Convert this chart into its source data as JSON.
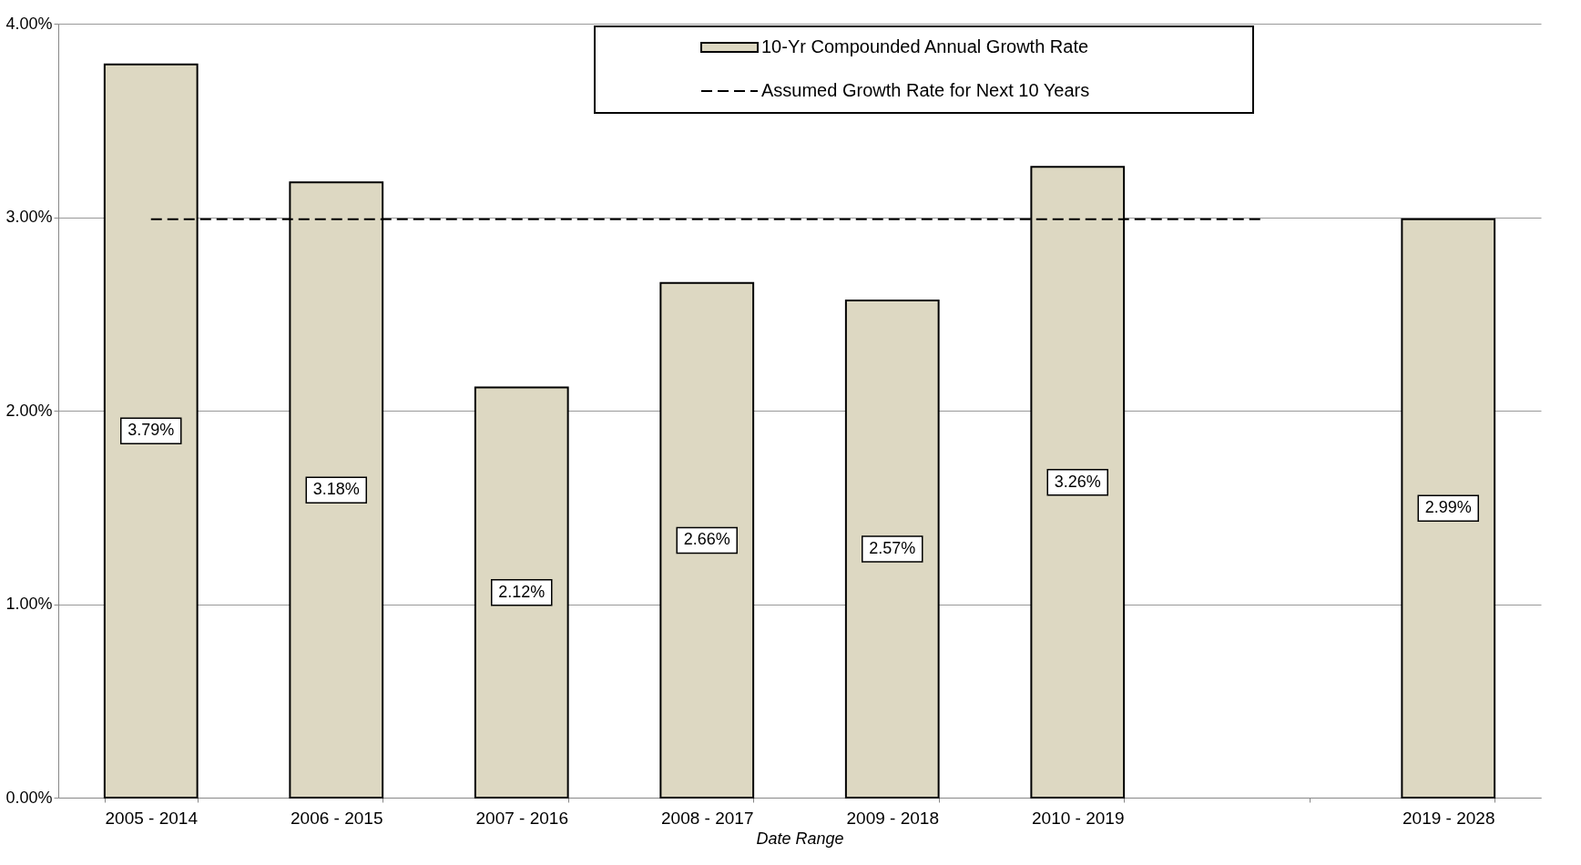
{
  "chart_data": {
    "type": "bar",
    "xlabel": "Date Range",
    "categories": [
      "2005 - 2014",
      "2006 - 2015",
      "2007 - 2016",
      "2008 - 2017",
      "2009 - 2018",
      "2010 - 2019",
      null,
      "2019 - 2028"
    ],
    "series": [
      {
        "name": "10-Yr Compounded Annual Growth Rate",
        "color": "#ddd8c2",
        "values": [
          3.79,
          3.18,
          2.12,
          2.66,
          2.57,
          3.26,
          null,
          2.99
        ],
        "value_labels": [
          "3.79%",
          "3.18%",
          "2.12%",
          "2.66%",
          "2.57%",
          "3.26%",
          null,
          "2.99%"
        ]
      },
      {
        "name": "Assumed Growth Rate for Next 10 Years",
        "type": "line",
        "line_style": "dashed",
        "color": "#000000",
        "values": [
          2.99,
          2.99,
          2.99,
          2.99,
          2.99,
          2.99,
          2.99,
          null
        ]
      }
    ],
    "ylim": [
      0,
      4
    ],
    "yticks": [
      {
        "value": 0,
        "label": "0.00%"
      },
      {
        "value": 1,
        "label": "1.00%"
      },
      {
        "value": 2,
        "label": "2.00%"
      },
      {
        "value": 3,
        "label": "3.00%"
      },
      {
        "value": 4,
        "label": "4.00%"
      }
    ],
    "grid": "y",
    "legend": "top"
  }
}
